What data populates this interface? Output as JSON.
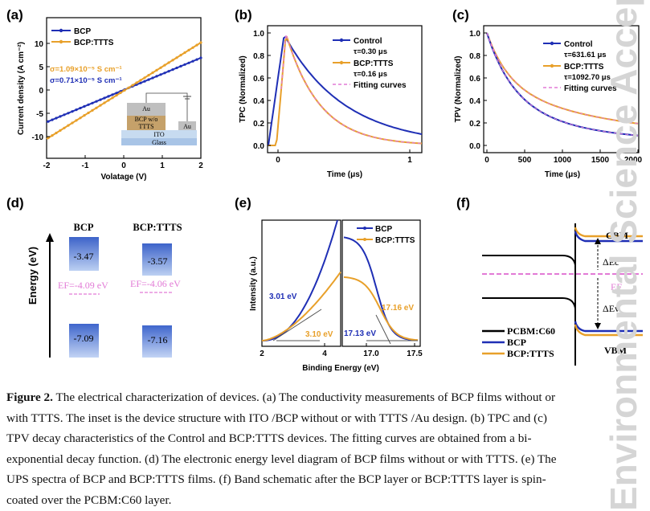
{
  "panels": {
    "a": {
      "label": "(a)",
      "xlabel": "Volatage (V)",
      "ylabel": "Current density (A cm⁻²)",
      "xticks": [
        "-2",
        "-1",
        "0",
        "1",
        "2"
      ],
      "yticks": [
        "10",
        "5",
        "0",
        "-5",
        "-10"
      ],
      "legend": [
        "BCP",
        "BCP:TTTS"
      ],
      "annot_ttts": "σ=1.09×10⁻⁵ S cm⁻¹",
      "annot_bcp": "σ=0.71×10⁻⁵ S cm⁻¹",
      "inset": {
        "au_top": "Au",
        "layer": "BCP w/o",
        "layer2": "TTTS",
        "au_side": "Au",
        "ito": "ITO",
        "glass": "Glass"
      }
    },
    "b": {
      "label": "(b)",
      "xlabel": "Time (μs)",
      "ylabel": "TPC (Normalized)",
      "xticks": [
        "0",
        "1"
      ],
      "yticks": [
        "1.0",
        "0.8",
        "0.6",
        "0.4",
        "0.2",
        "0.0"
      ],
      "legend": [
        "Control",
        "τ=0.30 μs",
        "BCP:TTTS",
        "τ=0.16 μs",
        "Fitting curves"
      ]
    },
    "c": {
      "label": "(c)",
      "xlabel": "Time (μs)",
      "ylabel": "TPV (Normalized)",
      "xticks": [
        "0",
        "500",
        "1000",
        "1500",
        "2000"
      ],
      "yticks": [
        "1.0",
        "0.8",
        "0.6",
        "0.4",
        "0.2",
        "0.0"
      ],
      "legend": [
        "Control",
        "τ=631.61 μs",
        "BCP:TTTS",
        "τ=1092.70 μs",
        "Fitting curves"
      ]
    },
    "d": {
      "label": "(d)",
      "ylabel": "Energy (eV)",
      "col1": "BCP",
      "col2": "BCP:TTTS",
      "lumo1": "-3.47",
      "lumo2": "-3.57",
      "ef1": "EF=-4.09 eV",
      "ef2": "EF=-4.06 eV",
      "homo1": "-7.09",
      "homo2": "-7.16"
    },
    "e": {
      "label": "(e)",
      "xlabel": "Binding Energy (eV)",
      "ylabel": "Intensity (a.u.)",
      "xticks_left": [
        "2",
        "4"
      ],
      "xticks_right": [
        "17.0",
        "17.5"
      ],
      "legend": [
        "BCP",
        "BCP:TTTS"
      ],
      "a1": "3.01 eV",
      "a2": "3.10 eV",
      "a3": "17.16 eV",
      "a4": "17.13 eV"
    },
    "f": {
      "label": "(f)",
      "cbm": "CBM",
      "vbm": "VBM",
      "dec": "ΔEc",
      "dev": "ΔEv",
      "ef": "EF",
      "legend": [
        "PCBM:C60",
        "BCP",
        "BCP:TTTS"
      ]
    }
  },
  "colors": {
    "blue": "#1f2fb5",
    "orange": "#e8a02a",
    "pink": "#e27ad6"
  },
  "caption": {
    "lead": "Figure 2.",
    "text": " The electrical characterization of devices. (a) The conductivity measurements of BCP films without or with TTTS. The inset is the device structure with ITO /BCP without or with TTTS /Au design. (b) TPC and (c) TPV decay characteristics of the Control and BCP:TTTS devices. The fitting curves are obtained from a bi-exponential decay function. (d) The electronic energy level diagram of BCP films without or with TTTS. (e) The UPS spectra of BCP and BCP:TTTS films. (f) Band schematic after the BCP layer or BCP:TTTS layer is spin-coated over the PCBM:C60 layer."
  },
  "watermark": "Environmental Science Accepted Manuscript"
}
